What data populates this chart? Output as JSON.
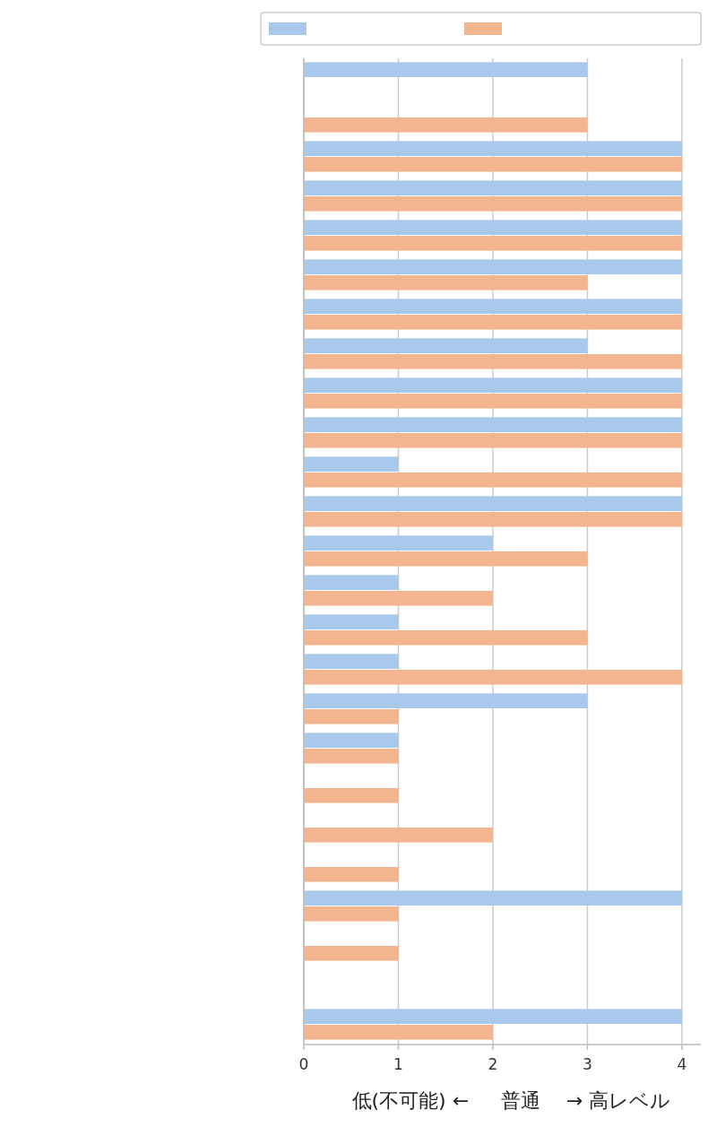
{
  "chart_data": {
    "type": "bar",
    "orientation": "horizontal",
    "categories": [
      null,
      null,
      null,
      null,
      null,
      null,
      null,
      null,
      null,
      null,
      null,
      null,
      null,
      null,
      null,
      null,
      null,
      null,
      null,
      null,
      null,
      null,
      null,
      null,
      null
    ],
    "series": [
      {
        "color": "#aac8ec",
        "values": [
          3,
          null,
          4,
          4,
          4,
          4,
          4,
          3,
          4,
          4,
          1,
          4,
          2,
          1,
          1,
          1,
          3,
          1,
          null,
          null,
          null,
          4,
          null,
          null,
          4
        ]
      },
      {
        "color": "#f2b58f",
        "values": [
          null,
          3,
          4,
          4,
          4,
          3,
          4,
          4,
          4,
          4,
          4,
          4,
          3,
          2,
          3,
          4,
          1,
          1,
          1,
          2,
          1,
          1,
          1,
          null,
          2
        ]
      }
    ],
    "xlabel": "低(不可能) ←　  普通 　→ 高レベル",
    "xlim": [
      0,
      4.2
    ],
    "xticks": [
      0,
      1,
      2,
      3,
      4
    ],
    "grid": "x"
  }
}
